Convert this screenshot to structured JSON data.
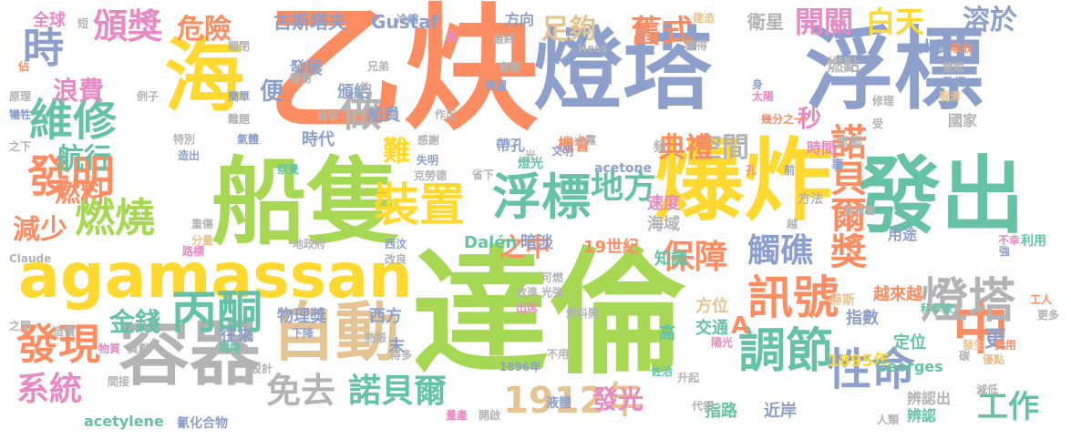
{
  "word_cloud": {
    "words": [
      {
        "text": "乙炔",
        "color": "#fc8d62",
        "weight": 100
      },
      {
        "text": "達倫",
        "color": "#a6d854",
        "weight": 98
      },
      {
        "text": "船隻",
        "color": "#a6d854",
        "weight": 80
      },
      {
        "text": "爆炸",
        "color": "#ffd92f",
        "weight": 76
      },
      {
        "text": "燈塔",
        "color": "#8da0cb",
        "weight": 72
      },
      {
        "text": "浮標",
        "color": "#8da0cb",
        "weight": 72
      },
      {
        "text": "發出",
        "color": "#66c2a5",
        "weight": 70
      },
      {
        "text": "海",
        "color": "#ffd92f",
        "weight": 66
      },
      {
        "text": "agamassan",
        "color": "#ffd92f",
        "weight": 58
      },
      {
        "text": "中",
        "color": "#fc8d62",
        "weight": 55
      },
      {
        "text": "容器",
        "color": "#b3b3b3",
        "weight": 50
      },
      {
        "text": "自動",
        "color": "#e5c494",
        "weight": 48
      },
      {
        "text": "燈塔",
        "color": "#b3b3b3",
        "weight": 42
      },
      {
        "text": "浮標",
        "color": "#66c2a5",
        "weight": 42
      },
      {
        "text": "調節",
        "color": "#66c2a5",
        "weight": 42
      },
      {
        "text": "裝置",
        "color": "#ffd92f",
        "weight": 40
      },
      {
        "text": "訊號",
        "color": "#fc8d62",
        "weight": 40
      },
      {
        "text": "丙酮",
        "color": "#66c2a5",
        "weight": 40
      },
      {
        "text": "性命",
        "color": "#8da0cb",
        "weight": 40
      },
      {
        "text": "維修",
        "color": "#66c2a5",
        "weight": 38
      },
      {
        "text": "發明",
        "color": "#fc8d62",
        "weight": 38
      },
      {
        "text": "發現",
        "color": "#fc8d62",
        "weight": 38
      },
      {
        "text": "時",
        "color": "#8da0cb",
        "weight": 36
      },
      {
        "text": "燃燒",
        "color": "#a6d854",
        "weight": 36
      },
      {
        "text": "做",
        "color": "#b3b3b3",
        "weight": 36
      },
      {
        "text": "諾貝爾獎",
        "color": "#fc8d62",
        "weight": 32
      },
      {
        "text": "頒獎",
        "color": "#e78ac3",
        "weight": 32
      },
      {
        "text": "1912年",
        "color": "#e5c494",
        "weight": 30
      },
      {
        "text": "保障",
        "color": "#fc8d62",
        "weight": 30
      },
      {
        "text": "觸礁",
        "color": "#8da0cb",
        "weight": 30
      },
      {
        "text": "諾貝爾",
        "color": "#66c2a5",
        "weight": 30
      },
      {
        "text": "免去",
        "color": "#b3b3b3",
        "weight": 30
      },
      {
        "text": "系統",
        "color": "#e78ac3",
        "weight": 30
      },
      {
        "text": "地方",
        "color": "#66c2a5",
        "weight": 28
      },
      {
        "text": "工作",
        "color": "#66c2a5",
        "weight": 26
      },
      {
        "text": "舊式",
        "color": "#fc8d62",
        "weight": 26
      },
      {
        "text": "白天",
        "color": "#ffd92f",
        "weight": 26
      },
      {
        "text": "開關",
        "color": "#e78ac3",
        "weight": 24
      },
      {
        "text": "溶於",
        "color": "#8da0cb",
        "weight": 24
      },
      {
        "text": "危險",
        "color": "#fc8d62",
        "weight": 24
      },
      {
        "text": "足夠",
        "color": "#e5c494",
        "weight": 24
      },
      {
        "text": "難",
        "color": "#ffd92f",
        "weight": 24
      },
      {
        "text": "空間",
        "color": "#b3b3b3",
        "weight": 24
      },
      {
        "text": "典禮",
        "color": "#fc8d62",
        "weight": 24
      },
      {
        "text": "航行",
        "color": "#66c2a5",
        "weight": 24
      },
      {
        "text": "減少",
        "color": "#fc8d62",
        "weight": 24
      },
      {
        "text": "金錢",
        "color": "#66c2a5",
        "weight": 22
      },
      {
        "text": "發光",
        "color": "#e78ac3",
        "weight": 22
      },
      {
        "text": "燃料",
        "color": "#fc8d62",
        "weight": 22
      },
      {
        "text": "浪費",
        "color": "#e78ac3",
        "weight": 22
      },
      {
        "text": "之中",
        "color": "#fc8d62",
        "weight": 22
      },
      {
        "text": "秒",
        "color": "#e78ac3",
        "weight": 22
      },
      {
        "text": "A",
        "color": "#fc8d62",
        "weight": 22
      },
      {
        "text": "更",
        "color": "#8da0cb",
        "weight": 20
      },
      {
        "text": "便",
        "color": "#8da0cb",
        "weight": 20
      },
      {
        "text": "古斯塔夫",
        "color": "#8da0cb",
        "weight": 16
      },
      {
        "text": "Gustaf",
        "color": "#8da0cb",
        "weight": 16
      },
      {
        "text": "方向",
        "color": "#8da0cb",
        "weight": 14
      },
      {
        "text": "衛星",
        "color": "#b3b3b3",
        "weight": 16
      },
      {
        "text": "人員",
        "color": "#8da0cb",
        "weight": 16
      },
      {
        "text": "全球",
        "color": "#e78ac3",
        "weight": 14
      },
      {
        "text": "發展",
        "color": "#8da0cb",
        "weight": 15
      },
      {
        "text": "頒給",
        "color": "#8da0cb",
        "weight": 15
      },
      {
        "text": "船員",
        "color": "#8da0cb",
        "weight": 15
      },
      {
        "text": "時代",
        "color": "#8da0cb",
        "weight": 15
      },
      {
        "text": "機會",
        "color": "#fc8d62",
        "weight": 15
      },
      {
        "text": "帶孔",
        "color": "#8da0cb",
        "weight": 14
      },
      {
        "text": "燃點",
        "color": "#b3b3b3",
        "weight": 16
      },
      {
        "text": "時間",
        "color": "#e78ac3",
        "weight": 14
      },
      {
        "text": "國家",
        "color": "#b3b3b3",
        "weight": 14
      },
      {
        "text": "速度",
        "color": "#e78ac3",
        "weight": 16
      },
      {
        "text": "海域",
        "color": "#b3b3b3",
        "weight": 16
      },
      {
        "text": "19世紀",
        "color": "#fc8d62",
        "weight": 16
      },
      {
        "text": "暗淡",
        "color": "#8da0cb",
        "weight": 16
      },
      {
        "text": "Dalén",
        "color": "#66c2a5",
        "weight": 16
      },
      {
        "text": "知識",
        "color": "#66c2a5",
        "weight": 15
      },
      {
        "text": "物理獎",
        "color": "#8da0cb",
        "weight": 16
      },
      {
        "text": "西方",
        "color": "#8da0cb",
        "weight": 16
      },
      {
        "text": "往來",
        "color": "#8da0cb",
        "weight": 16
      },
      {
        "text": "方位",
        "color": "#e5c494",
        "weight": 16
      },
      {
        "text": "交通",
        "color": "#66c2a5",
        "weight": 15
      },
      {
        "text": "指數",
        "color": "#8da0cb",
        "weight": 16
      },
      {
        "text": "定位",
        "color": "#66c2a5",
        "weight": 16
      },
      {
        "text": "越來越",
        "color": "#fc8d62",
        "weight": 16
      },
      {
        "text": "1895年",
        "color": "#ffd92f",
        "weight": 15
      },
      {
        "text": "Georges",
        "color": "#66c2a5",
        "weight": 14
      },
      {
        "text": "高",
        "color": "#66c2a5",
        "weight": 16
      },
      {
        "text": "末",
        "color": "#8da0cb",
        "weight": 16
      },
      {
        "text": "指路",
        "color": "#66c2a5",
        "weight": 16
      },
      {
        "text": "近岸",
        "color": "#8da0cb",
        "weight": 16
      },
      {
        "text": "辨認出",
        "color": "#b3b3b3",
        "weight": 14
      },
      {
        "text": "辨認",
        "color": "#66c2a5",
        "weight": 14
      },
      {
        "text": "用途",
        "color": "#8da0cb",
        "weight": 14
      },
      {
        "text": "acetylene",
        "color": "#66c2a5",
        "weight": 14
      },
      {
        "text": "acetone",
        "color": "#8da0cb",
        "weight": 12
      },
      {
        "text": "氰化合物",
        "color": "#8da0cb",
        "weight": 12
      },
      {
        "text": "1896年",
        "color": "#8da0cb",
        "weight": 11
      },
      {
        "text": "氣態",
        "color": "#b3b3b3",
        "weight": 12
      },
      {
        "text": "事",
        "color": "#8da0cb",
        "weight": 13
      },
      {
        "text": "頻",
        "color": "#b3b3b3",
        "weight": 13
      },
      {
        "text": "燈光",
        "color": "#66c2a5",
        "weight": 12
      },
      {
        "text": "方法",
        "color": "#b3b3b3",
        "weight": 11
      },
      {
        "text": "委員會",
        "color": "#b3b3b3",
        "weight": 10
      },
      {
        "text": "利用",
        "color": "#66c2a5",
        "weight": 11
      },
      {
        "text": "不幸",
        "color": "#e78ac3",
        "weight": 10
      },
      {
        "text": "強",
        "color": "#8da0cb",
        "weight": 11
      },
      {
        "text": "赫斯",
        "color": "#e5c494",
        "weight": 11
      },
      {
        "text": "科學家",
        "color": "#66c2a5",
        "weight": 10
      },
      {
        "text": "工人",
        "color": "#fc8d62",
        "weight": 10
      },
      {
        "text": "更多",
        "color": "#b3b3b3",
        "weight": 10
      },
      {
        "text": "費用",
        "color": "#fc8d62",
        "weight": 10
      },
      {
        "text": "發生",
        "color": "#e5c494",
        "weight": 10
      },
      {
        "text": "碳",
        "color": "#b3b3b3",
        "weight": 10
      },
      {
        "text": "優點",
        "color": "#e5c494",
        "weight": 10
      },
      {
        "text": "減低",
        "color": "#b3b3b3",
        "weight": 10
      },
      {
        "text": "人類",
        "color": "#b3b3b3",
        "weight": 10
      },
      {
        "text": "陽光",
        "color": "#e78ac3",
        "weight": 10
      },
      {
        "text": "升起",
        "color": "#b3b3b3",
        "weight": 10
      },
      {
        "text": "代領",
        "color": "#b3b3b3",
        "weight": 10
      },
      {
        "text": "液體",
        "color": "#8da0cb",
        "weight": 11
      },
      {
        "text": "量產",
        "color": "#e78ac3",
        "weight": 10
      },
      {
        "text": "開啟",
        "color": "#b3b3b3",
        "weight": 10
      },
      {
        "text": "冷縮",
        "color": "#8da0cb",
        "weight": 10
      },
      {
        "text": "最終",
        "color": "#b3b3b3",
        "weight": 10
      },
      {
        "text": "Hess",
        "color": "#b3b3b3",
        "weight": 10
      },
      {
        "text": "建造",
        "color": "#e5c494",
        "weight": 10
      },
      {
        "text": "變得",
        "color": "#b3b3b3",
        "weight": 10
      },
      {
        "text": "吸收",
        "color": "#fc8d62",
        "weight": 10
      },
      {
        "text": "雙眼",
        "color": "#b3b3b3",
        "weight": 10
      },
      {
        "text": "致詞",
        "color": "#8da0cb",
        "weight": 10
      },
      {
        "text": "看清",
        "color": "#e5c494",
        "weight": 10
      },
      {
        "text": "身",
        "color": "#8da0cb",
        "weight": 10
      },
      {
        "text": "太陽",
        "color": "#e78ac3",
        "weight": 10
      },
      {
        "text": "修理",
        "color": "#b3b3b3",
        "weight": 10
      },
      {
        "text": "受",
        "color": "#b3b3b3",
        "weight": 10
      },
      {
        "text": "幾分之一",
        "color": "#fc8d62",
        "weight": 10
      },
      {
        "text": "前",
        "color": "#8da0cb",
        "weight": 10
      },
      {
        "text": "孔",
        "color": "#e78ac3",
        "weight": 10
      },
      {
        "text": "越",
        "color": "#b3b3b3",
        "weight": 10
      },
      {
        "text": "大霧",
        "color": "#b3b3b3",
        "weight": 10
      },
      {
        "text": "文明",
        "color": "#8da0cb",
        "weight": 10
      },
      {
        "text": "光",
        "color": "#b3b3b3",
        "weight": 10
      },
      {
        "text": "作出",
        "color": "#b3b3b3",
        "weight": 10
      },
      {
        "text": "感謝",
        "color": "#b3b3b3",
        "weight": 10
      },
      {
        "text": "失明",
        "color": "#8da0cb",
        "weight": 10
      },
      {
        "text": "克勞德",
        "color": "#b3b3b3",
        "weight": 10
      },
      {
        "text": "省下",
        "color": "#b3b3b3",
        "weight": 10
      },
      {
        "text": "希望",
        "color": "#8da0cb",
        "weight": 10
      },
      {
        "text": "實驗",
        "color": "#b3b3b3",
        "weight": 10
      },
      {
        "text": "兄弟",
        "color": "#b3b3b3",
        "weight": 10
      },
      {
        "text": "輕易",
        "color": "#b3b3b3",
        "weight": 10
      },
      {
        "text": "約",
        "color": "#b3b3b3",
        "weight": 11
      },
      {
        "text": "省卻",
        "color": "#b3b3b3",
        "weight": 10
      },
      {
        "text": "長",
        "color": "#e78ac3",
        "weight": 12
      },
      {
        "text": "短",
        "color": "#b3b3b3",
        "weight": 10
      },
      {
        "text": "佔",
        "color": "#fc8d62",
        "weight": 10
      },
      {
        "text": "原理",
        "color": "#b3b3b3",
        "weight": 10
      },
      {
        "text": "犧牲",
        "color": "#8da0cb",
        "weight": 10
      },
      {
        "text": "之下",
        "color": "#b3b3b3",
        "weight": 10
      },
      {
        "text": "例子",
        "color": "#b3b3b3",
        "weight": 10
      },
      {
        "text": "簡單",
        "color": "#8da0cb",
        "weight": 10
      },
      {
        "text": "難題",
        "color": "#b3b3b3",
        "weight": 10
      },
      {
        "text": "關閉",
        "color": "#b3b3b3",
        "weight": 10
      },
      {
        "text": "特別",
        "color": "#b3b3b3",
        "weight": 10
      },
      {
        "text": "氣體",
        "color": "#8da0cb",
        "weight": 10
      },
      {
        "text": "造出",
        "color": "#8da0cb",
        "weight": 10
      },
      {
        "text": "察覺",
        "color": "#66c2a5",
        "weight": 11
      },
      {
        "text": "重傷",
        "color": "#b3b3b3",
        "weight": 10
      },
      {
        "text": "分量",
        "color": "#e5c494",
        "weight": 10
      },
      {
        "text": "路標",
        "color": "#e78ac3",
        "weight": 10
      },
      {
        "text": "地政府",
        "color": "#b3b3b3",
        "weight": 10
      },
      {
        "text": "西汶",
        "color": "#8da0cb",
        "weight": 10
      },
      {
        "text": "改良",
        "color": "#b3b3b3",
        "weight": 10
      },
      {
        "text": "Claude",
        "color": "#b3b3b3",
        "weight": 10
      },
      {
        "text": "可燃",
        "color": "#b3b3b3",
        "weight": 10
      },
      {
        "text": "放進",
        "color": "#b3b3b3",
        "weight": 10
      },
      {
        "text": "光強",
        "color": "#b3b3b3",
        "weight": 10
      },
      {
        "text": "出席",
        "color": "#e78ac3",
        "weight": 10
      },
      {
        "text": "燃料開",
        "color": "#b3b3b3",
        "weight": 10
      },
      {
        "text": "之間",
        "color": "#b3b3b3",
        "weight": 10
      },
      {
        "text": "造價",
        "color": "#b3b3b3",
        "weight": 10
      },
      {
        "text": "環境",
        "color": "#66c2a5",
        "weight": 10
      },
      {
        "text": "下降",
        "color": "#8da0cb",
        "weight": 10
      },
      {
        "text": "物質",
        "color": "#e78ac3",
        "weight": 10
      },
      {
        "text": "貢獻",
        "color": "#b3b3b3",
        "weight": 10
      },
      {
        "text": "得多",
        "color": "#b3b3b3",
        "weight": 10
      },
      {
        "text": "熱脹",
        "color": "#b3b3b3",
        "weight": 10
      },
      {
        "text": "設計",
        "color": "#b3b3b3",
        "weight": 10
      },
      {
        "text": "間接",
        "color": "#b3b3b3",
        "weight": 10
      },
      {
        "text": "不用",
        "color": "#b3b3b3",
        "weight": 10
      },
      {
        "text": "佐治",
        "color": "#66c2a5",
        "weight": 10
      }
    ]
  }
}
